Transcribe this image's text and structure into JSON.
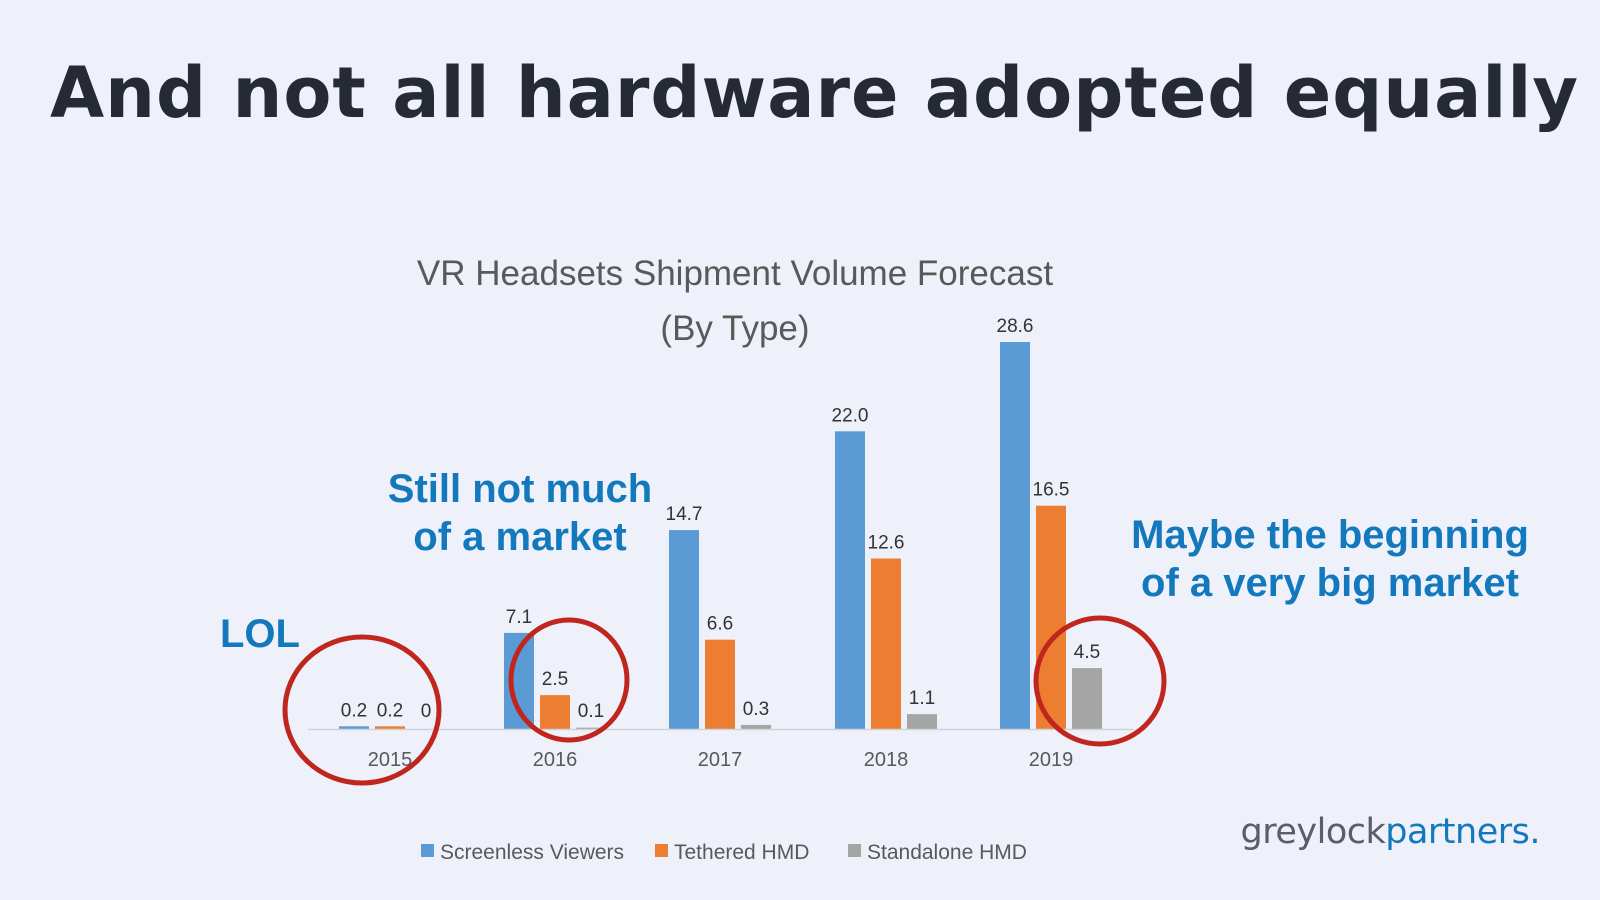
{
  "slide": {
    "title": "And not all hardware adopted equally"
  },
  "annotations": {
    "lol": "LOL",
    "still_line1": "Still not much",
    "still_line2": "of a market",
    "maybe_line1": "Maybe the beginning",
    "maybe_line2": "of a very big market"
  },
  "logo": {
    "part1": "greylock",
    "part2": "partners.",
    "color_grey": "#5a5e66",
    "color_blue": "#1478bd"
  },
  "colors": {
    "annotation": "#1478bd",
    "highlight_circle": "#c0261d"
  },
  "chart_data": {
    "type": "bar",
    "title": [
      "VR Headsets Shipment Volume Forecast",
      "(By Type)"
    ],
    "categories": [
      "2015",
      "2016",
      "2017",
      "2018",
      "2019"
    ],
    "series": [
      {
        "name": "Screenless Viewers",
        "color": "#5b9bd5",
        "values": [
          0.2,
          7.1,
          14.7,
          22.0,
          28.6
        ],
        "labels": [
          "0.2",
          "7.1",
          "14.7",
          "22.0",
          "28.6"
        ]
      },
      {
        "name": "Tethered HMD",
        "color": "#ed7d31",
        "values": [
          0.2,
          2.5,
          6.6,
          12.6,
          16.5
        ],
        "labels": [
          "0.2",
          "2.5",
          "6.6",
          "12.6",
          "16.5"
        ]
      },
      {
        "name": "Standalone HMD",
        "color": "#a5a5a5",
        "values": [
          0,
          0.1,
          0.3,
          1.1,
          4.5
        ],
        "labels": [
          "0",
          "0.1",
          "0.3",
          "1.1",
          "4.5"
        ]
      }
    ],
    "ylim": [
      0,
      28.6
    ],
    "grid": false,
    "legend": "bottom",
    "highlighted_categories": [
      "2015",
      "2016",
      "2019"
    ]
  }
}
